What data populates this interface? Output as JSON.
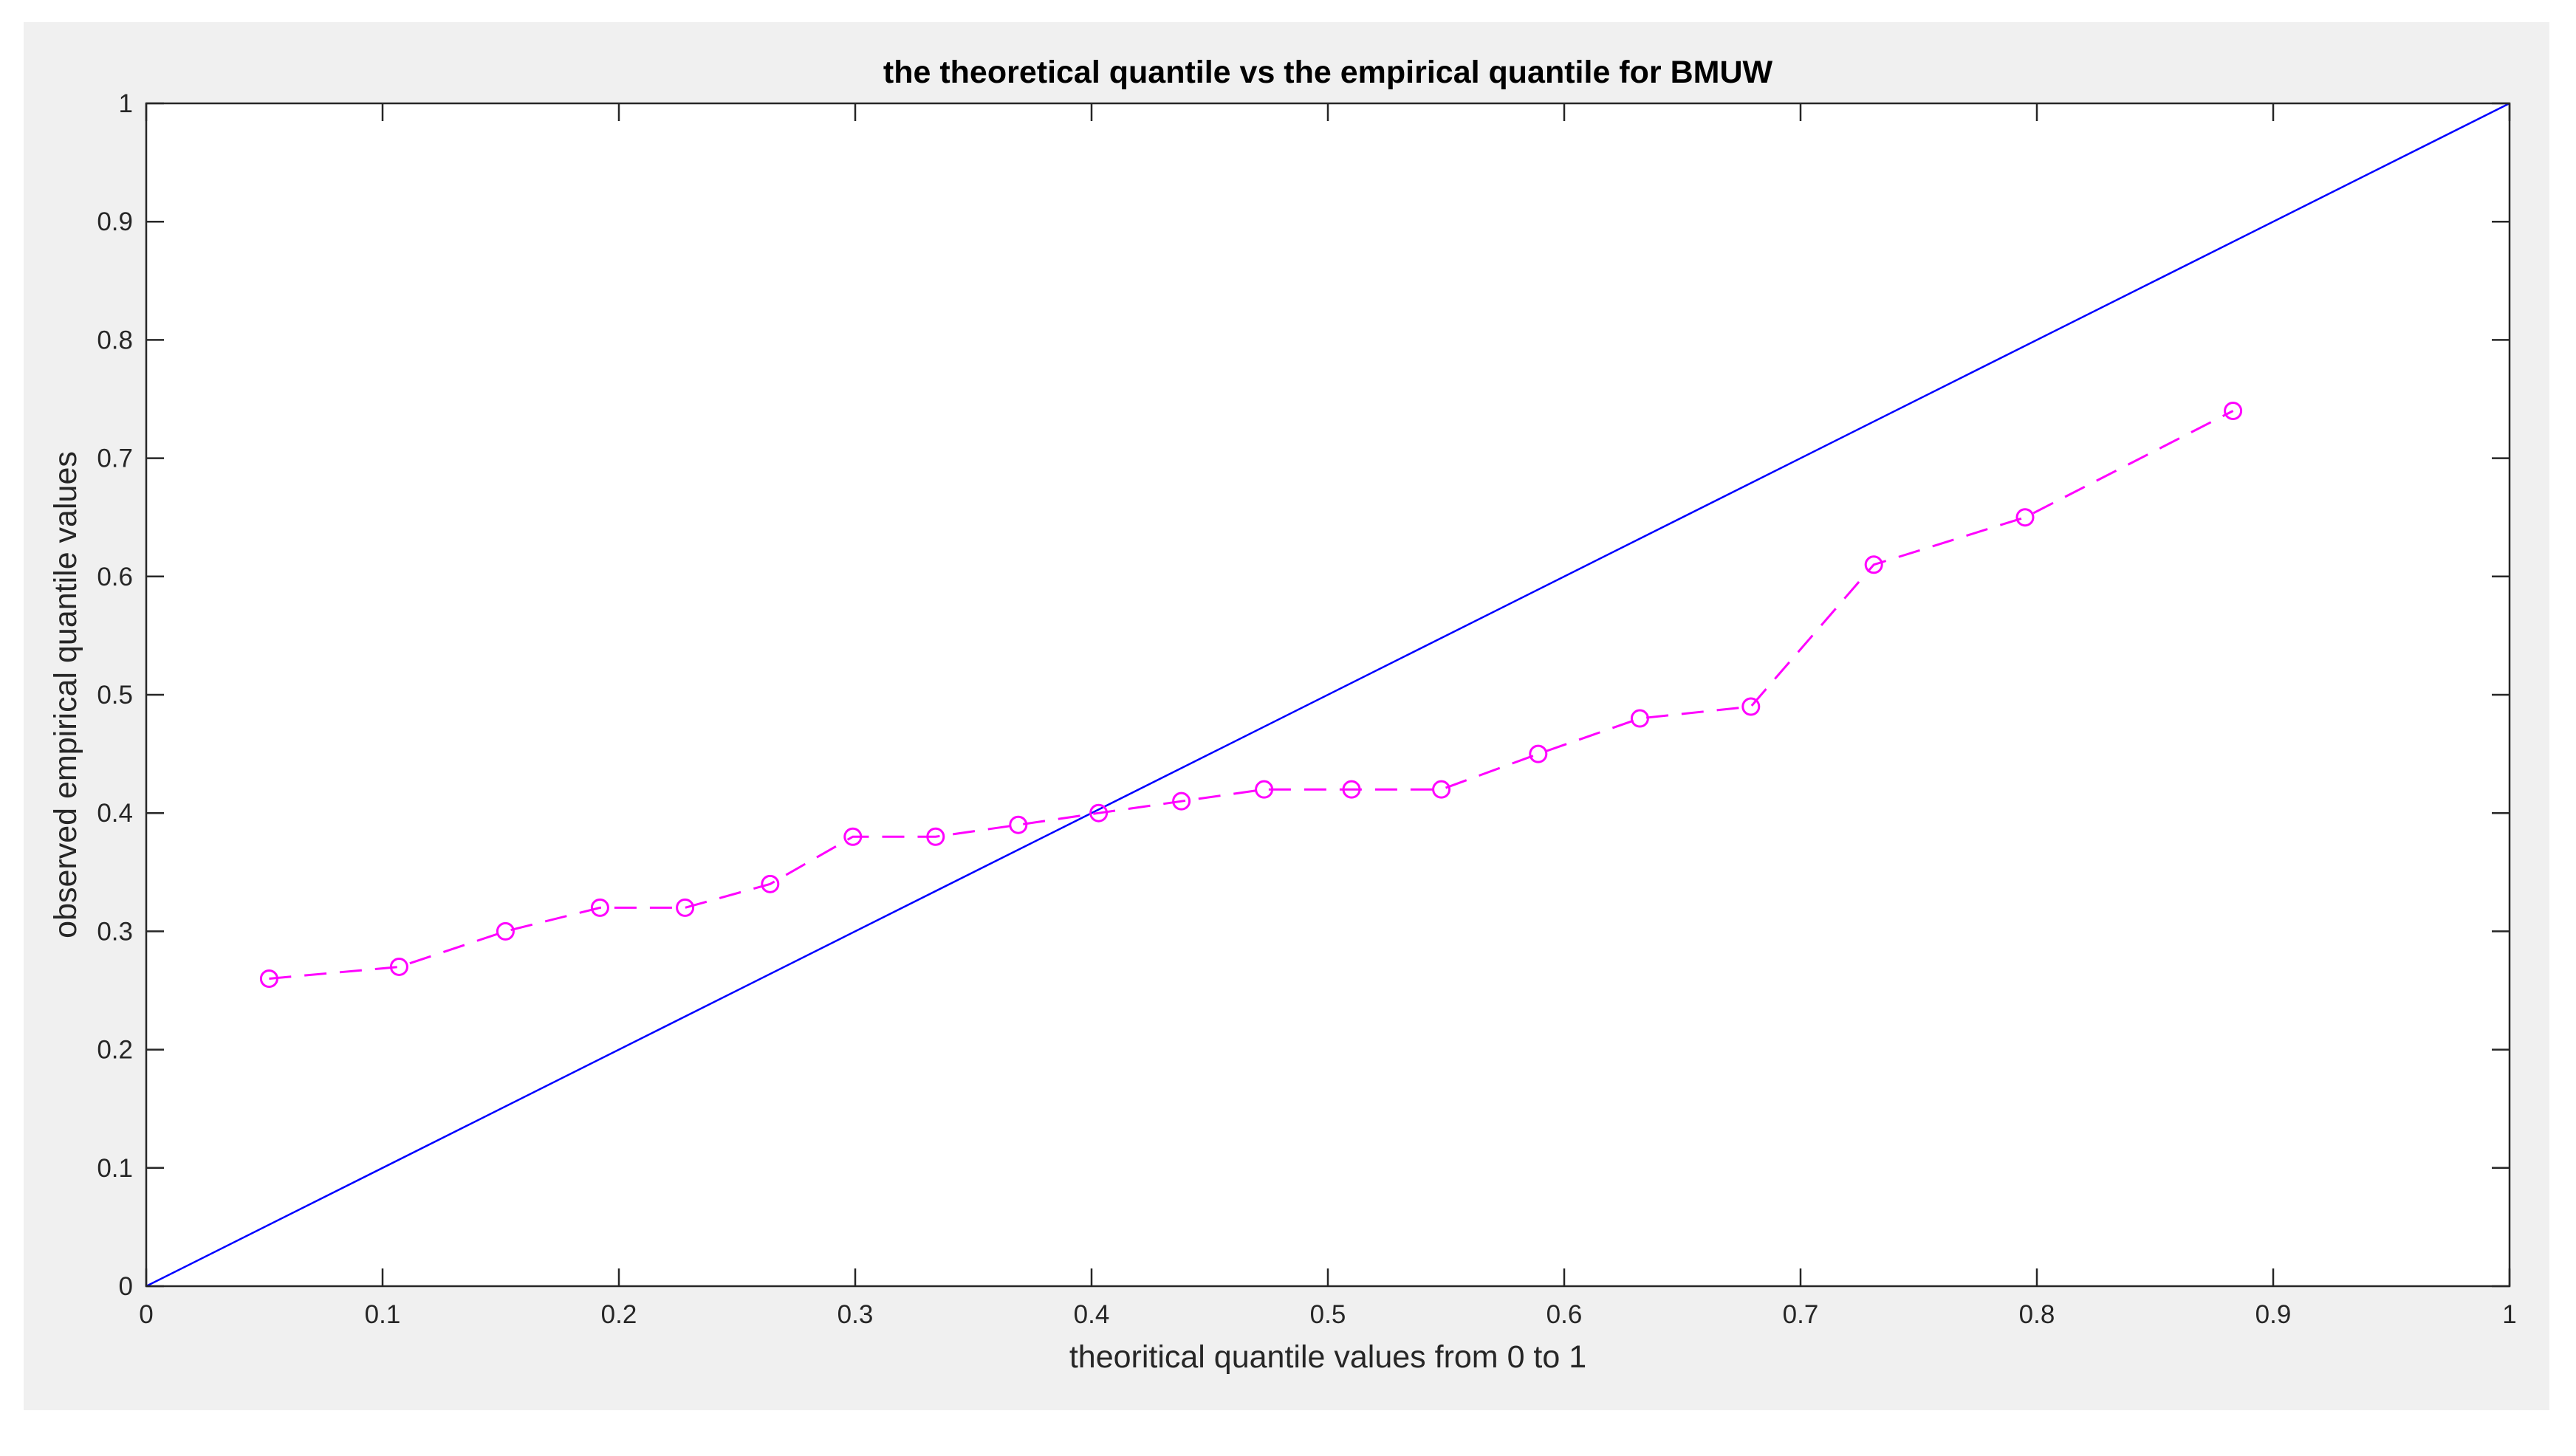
{
  "chart_data": {
    "type": "line",
    "title": "the theoretical quantile vs the empirical quantile for BMUW",
    "xlabel": "theoritical quantile values from 0 to 1",
    "ylabel": "observed empirical quantile  values",
    "xlim": [
      0,
      1
    ],
    "ylim": [
      0,
      1
    ],
    "xticks": [
      "0",
      "0.1",
      "0.2",
      "0.3",
      "0.4",
      "0.5",
      "0.6",
      "0.7",
      "0.8",
      "0.9",
      "1"
    ],
    "yticks": [
      "0",
      "0.1",
      "0.2",
      "0.3",
      "0.4",
      "0.5",
      "0.6",
      "0.7",
      "0.8",
      "0.9",
      "1"
    ],
    "grid": false,
    "legend": "none",
    "series": [
      {
        "style": "solid",
        "marker": "none",
        "color": "#0000ff",
        "x": [
          0,
          1
        ],
        "y": [
          0,
          1
        ]
      },
      {
        "style": "dashed",
        "marker": "circle",
        "color": "#ff00ff",
        "x": [
          0.052,
          0.107,
          0.152,
          0.192,
          0.228,
          0.264,
          0.299,
          0.334,
          0.369,
          0.403,
          0.438,
          0.473,
          0.51,
          0.548,
          0.589,
          0.632,
          0.679,
          0.731,
          0.795,
          0.883
        ],
        "y": [
          0.26,
          0.27,
          0.3,
          0.32,
          0.32,
          0.34,
          0.38,
          0.38,
          0.39,
          0.4,
          0.41,
          0.42,
          0.42,
          0.42,
          0.45,
          0.48,
          0.49,
          0.61,
          0.65,
          0.74
        ]
      }
    ]
  }
}
